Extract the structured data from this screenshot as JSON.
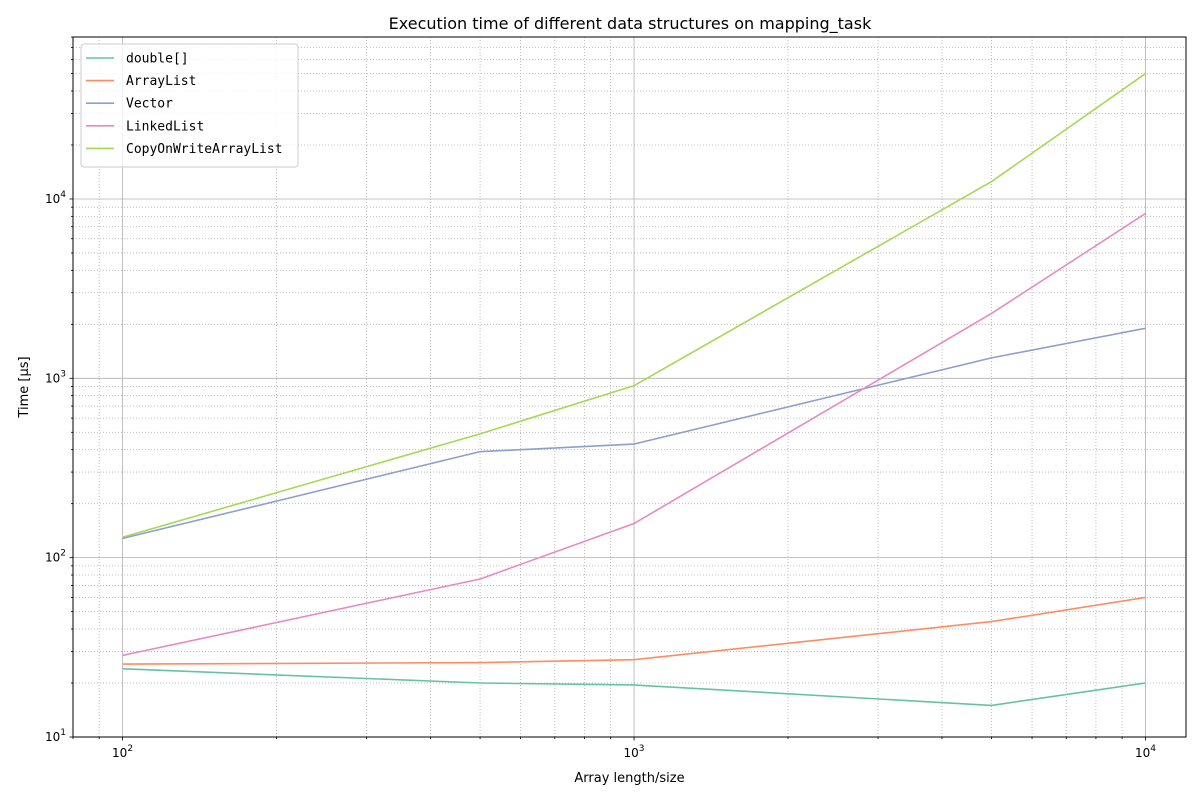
{
  "chart_data": {
    "type": "line",
    "title": "Execution time of different data structures on mapping_task",
    "xlabel": "Array length/size",
    "ylabel": "Time [μs]",
    "x_scale": "log",
    "y_scale": "log",
    "xlim": [
      80,
      12000
    ],
    "ylim": [
      10,
      80000
    ],
    "x": [
      100,
      500,
      1000,
      5000,
      10000
    ],
    "x_ticks": [
      {
        "value": 100,
        "base": "10",
        "exp": "2"
      },
      {
        "value": 1000,
        "base": "10",
        "exp": "3"
      },
      {
        "value": 10000,
        "base": "10",
        "exp": "4"
      }
    ],
    "y_ticks": [
      {
        "value": 10,
        "base": "10",
        "exp": "1"
      },
      {
        "value": 100,
        "base": "10",
        "exp": "2"
      },
      {
        "value": 1000,
        "base": "10",
        "exp": "3"
      },
      {
        "value": 10000,
        "base": "10",
        "exp": "4"
      }
    ],
    "grid": "major solid, minor dotted",
    "legend_position": "upper-left",
    "series": [
      {
        "name": "double[]",
        "color": "#66c2a5",
        "values": [
          24,
          20,
          19.5,
          15,
          20
        ]
      },
      {
        "name": "ArrayList",
        "color": "#fc8d62",
        "values": [
          25.5,
          26,
          27,
          44,
          60
        ]
      },
      {
        "name": "Vector",
        "color": "#8da0cb",
        "values": [
          128,
          390,
          430,
          1300,
          1900
        ]
      },
      {
        "name": "LinkedList",
        "color": "#e78ac3",
        "values": [
          28.5,
          76,
          155,
          2300,
          8300
        ]
      },
      {
        "name": "CopyOnWriteArrayList",
        "color": "#a6d854",
        "values": [
          130,
          490,
          910,
          12500,
          50000
        ]
      }
    ]
  }
}
